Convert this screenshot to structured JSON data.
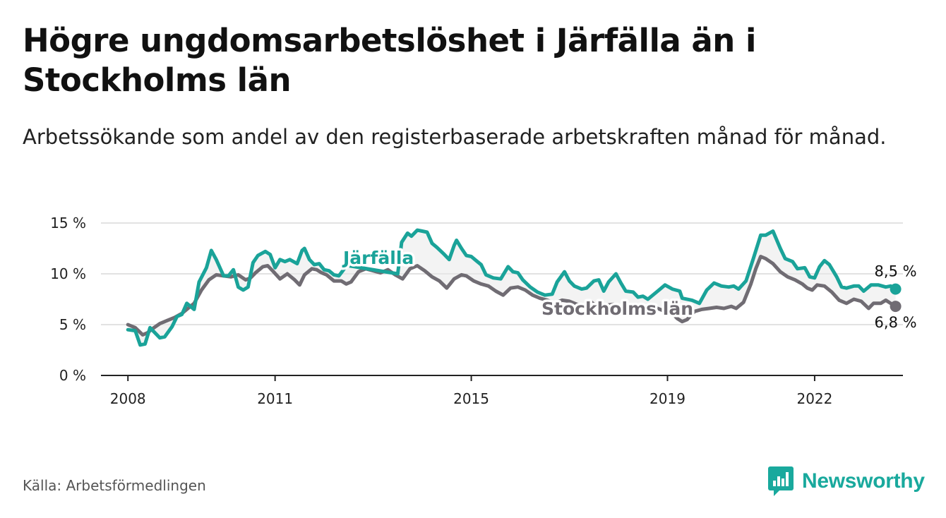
{
  "header": {
    "title": "Högre ungdomsarbetslöshet i Järfälla än i Stockholms län",
    "subtitle": "Arbetssökande som andel av den registerbaserade arbetskraften månad för månad."
  },
  "footer": {
    "source": "Källa: Arbetsförmedlingen",
    "brand": "Newsworthy"
  },
  "colors": {
    "jarfalla": "#1aa399",
    "stockholm": "#706c73",
    "grid": "#d9d9d9",
    "axis": "#222222",
    "brand": "#19a99d"
  },
  "chart_data": {
    "type": "line",
    "title": "Högre ungdomsarbetslöshet i Järfälla än i Stockholms län",
    "xlabel": "",
    "ylabel": "",
    "x_range": [
      2007.45,
      2023.8
    ],
    "ylim": [
      0,
      15
    ],
    "y_ticks": [
      0,
      5,
      10,
      15
    ],
    "y_tick_labels": [
      "0 %",
      "5 %",
      "10 %",
      "15 %"
    ],
    "x_ticks": [
      2008,
      2011,
      2015,
      2019,
      2022
    ],
    "x_tick_labels": [
      "2008",
      "2011",
      "2015",
      "2019",
      "2022"
    ],
    "grid": true,
    "series": [
      {
        "name": "Järfälla",
        "end_label": "8,5 %",
        "points": [
          [
            2008.0,
            4.5
          ],
          [
            2008.15,
            4.4
          ],
          [
            2008.25,
            3.0
          ],
          [
            2008.35,
            3.1
          ],
          [
            2008.45,
            4.7
          ],
          [
            2008.55,
            4.2
          ],
          [
            2008.65,
            3.7
          ],
          [
            2008.75,
            3.8
          ],
          [
            2008.9,
            4.8
          ],
          [
            2009.0,
            5.8
          ],
          [
            2009.1,
            6.0
          ],
          [
            2009.2,
            7.1
          ],
          [
            2009.35,
            6.5
          ],
          [
            2009.45,
            9.2
          ],
          [
            2009.6,
            10.6
          ],
          [
            2009.7,
            12.3
          ],
          [
            2009.8,
            11.4
          ],
          [
            2009.95,
            9.8
          ],
          [
            2010.05,
            9.8
          ],
          [
            2010.15,
            10.4
          ],
          [
            2010.25,
            8.7
          ],
          [
            2010.35,
            8.4
          ],
          [
            2010.45,
            8.7
          ],
          [
            2010.55,
            11.1
          ],
          [
            2010.65,
            11.8
          ],
          [
            2010.8,
            12.2
          ],
          [
            2010.9,
            11.9
          ],
          [
            2011.0,
            10.6
          ],
          [
            2011.1,
            11.4
          ],
          [
            2011.2,
            11.2
          ],
          [
            2011.3,
            11.4
          ],
          [
            2011.45,
            11.0
          ],
          [
            2011.55,
            12.3
          ],
          [
            2011.6,
            12.5
          ],
          [
            2011.7,
            11.4
          ],
          [
            2011.8,
            10.9
          ],
          [
            2011.9,
            11.0
          ],
          [
            2012.0,
            10.4
          ],
          [
            2012.1,
            10.3
          ],
          [
            2012.2,
            9.9
          ],
          [
            2012.3,
            9.8
          ],
          [
            2012.38,
            10.3
          ],
          [
            2012.45,
            10.8
          ],
          [
            2012.5,
            10.8
          ],
          [
            2013.5,
            10.0
          ],
          [
            2013.58,
            13.1
          ],
          [
            2013.7,
            14.0
          ],
          [
            2013.78,
            13.7
          ],
          [
            2013.9,
            14.3
          ],
          [
            2014.0,
            14.2
          ],
          [
            2014.1,
            14.1
          ],
          [
            2014.2,
            13.0
          ],
          [
            2014.3,
            12.6
          ],
          [
            2014.45,
            11.9
          ],
          [
            2014.55,
            11.4
          ],
          [
            2014.65,
            12.8
          ],
          [
            2014.7,
            13.3
          ],
          [
            2014.8,
            12.5
          ],
          [
            2014.9,
            11.8
          ],
          [
            2015.0,
            11.7
          ],
          [
            2015.1,
            11.3
          ],
          [
            2015.2,
            10.9
          ],
          [
            2015.3,
            9.9
          ],
          [
            2015.45,
            9.6
          ],
          [
            2015.6,
            9.5
          ],
          [
            2015.75,
            10.7
          ],
          [
            2015.85,
            10.2
          ],
          [
            2015.95,
            10.1
          ],
          [
            2016.05,
            9.4
          ],
          [
            2016.2,
            8.7
          ],
          [
            2016.35,
            8.2
          ],
          [
            2016.5,
            7.9
          ],
          [
            2016.65,
            8.0
          ],
          [
            2016.75,
            9.2
          ],
          [
            2016.9,
            10.2
          ],
          [
            2017.0,
            9.3
          ],
          [
            2017.1,
            8.8
          ],
          [
            2017.25,
            8.5
          ],
          [
            2017.35,
            8.6
          ],
          [
            2017.5,
            9.3
          ],
          [
            2017.6,
            9.4
          ],
          [
            2017.7,
            8.3
          ],
          [
            2017.8,
            9.2
          ],
          [
            2017.95,
            10.0
          ],
          [
            2018.05,
            9.1
          ],
          [
            2018.15,
            8.3
          ],
          [
            2018.3,
            8.2
          ],
          [
            2018.4,
            7.7
          ],
          [
            2018.5,
            7.8
          ],
          [
            2018.6,
            7.5
          ],
          [
            2018.8,
            8.3
          ],
          [
            2018.95,
            8.9
          ],
          [
            2019.1,
            8.5
          ],
          [
            2019.25,
            8.3
          ],
          [
            2019.3,
            7.6
          ],
          [
            2019.5,
            7.4
          ],
          [
            2019.65,
            7.1
          ],
          [
            2019.8,
            8.4
          ],
          [
            2019.95,
            9.1
          ],
          [
            2020.1,
            8.8
          ],
          [
            2020.25,
            8.7
          ],
          [
            2020.35,
            8.8
          ],
          [
            2020.45,
            8.5
          ],
          [
            2020.6,
            9.3
          ],
          [
            2020.75,
            11.5
          ],
          [
            2020.9,
            13.8
          ],
          [
            2021.0,
            13.8
          ],
          [
            2021.15,
            14.2
          ],
          [
            2021.3,
            12.5
          ],
          [
            2021.4,
            11.5
          ],
          [
            2021.55,
            11.2
          ],
          [
            2021.65,
            10.5
          ],
          [
            2021.8,
            10.6
          ],
          [
            2021.9,
            9.7
          ],
          [
            2022.0,
            9.6
          ],
          [
            2022.1,
            10.7
          ],
          [
            2022.2,
            11.3
          ],
          [
            2022.3,
            10.9
          ],
          [
            2022.45,
            9.7
          ],
          [
            2022.55,
            8.7
          ],
          [
            2022.65,
            8.6
          ],
          [
            2022.8,
            8.8
          ],
          [
            2022.9,
            8.8
          ],
          [
            2023.0,
            8.3
          ],
          [
            2023.15,
            8.9
          ],
          [
            2023.3,
            8.9
          ],
          [
            2023.45,
            8.7
          ],
          [
            2023.55,
            8.8
          ],
          [
            2023.65,
            8.5
          ]
        ]
      },
      {
        "name": "Stockholms län",
        "end_label": "6,8 %",
        "points": [
          [
            2008.0,
            5.0
          ],
          [
            2008.15,
            4.7
          ],
          [
            2008.3,
            4.0
          ],
          [
            2008.4,
            4.2
          ],
          [
            2008.5,
            4.6
          ],
          [
            2008.65,
            5.1
          ],
          [
            2008.8,
            5.4
          ],
          [
            2008.95,
            5.7
          ],
          [
            2009.1,
            6.1
          ],
          [
            2009.25,
            6.7
          ],
          [
            2009.35,
            7.1
          ],
          [
            2009.5,
            8.4
          ],
          [
            2009.65,
            9.4
          ],
          [
            2009.8,
            9.9
          ],
          [
            2009.95,
            9.8
          ],
          [
            2010.1,
            9.7
          ],
          [
            2010.25,
            9.9
          ],
          [
            2010.4,
            9.4
          ],
          [
            2010.5,
            9.6
          ],
          [
            2010.6,
            10.1
          ],
          [
            2010.75,
            10.7
          ],
          [
            2010.85,
            10.8
          ],
          [
            2010.95,
            10.3
          ],
          [
            2011.1,
            9.5
          ],
          [
            2011.25,
            10.0
          ],
          [
            2011.4,
            9.4
          ],
          [
            2011.5,
            8.9
          ],
          [
            2011.6,
            9.9
          ],
          [
            2011.75,
            10.5
          ],
          [
            2011.85,
            10.4
          ],
          [
            2011.95,
            10.1
          ],
          [
            2012.05,
            9.9
          ],
          [
            2012.2,
            9.3
          ],
          [
            2012.35,
            9.3
          ],
          [
            2012.45,
            9.0
          ],
          [
            2012.55,
            9.2
          ],
          [
            2012.7,
            10.2
          ],
          [
            2012.85,
            10.5
          ],
          [
            2013.0,
            10.3
          ],
          [
            2013.15,
            10.1
          ],
          [
            2013.3,
            10.4
          ],
          [
            2013.45,
            9.9
          ],
          [
            2013.6,
            9.5
          ],
          [
            2013.75,
            10.5
          ],
          [
            2013.9,
            10.8
          ],
          [
            2014.05,
            10.3
          ],
          [
            2014.2,
            9.7
          ],
          [
            2014.35,
            9.3
          ],
          [
            2014.5,
            8.6
          ],
          [
            2014.65,
            9.5
          ],
          [
            2014.8,
            9.9
          ],
          [
            2014.9,
            9.8
          ],
          [
            2015.05,
            9.3
          ],
          [
            2015.2,
            9.0
          ],
          [
            2015.35,
            8.8
          ],
          [
            2015.5,
            8.3
          ],
          [
            2015.65,
            7.9
          ],
          [
            2015.8,
            8.6
          ],
          [
            2015.95,
            8.7
          ],
          [
            2016.1,
            8.4
          ],
          [
            2016.25,
            7.9
          ],
          [
            2016.4,
            7.6
          ],
          [
            2016.55,
            7.4
          ],
          [
            2016.7,
            7.1
          ],
          [
            2016.85,
            7.4
          ],
          [
            2017.0,
            7.3
          ],
          [
            2017.15,
            7.0
          ],
          [
            2017.3,
            6.9
          ],
          [
            2017.45,
            7.2
          ],
          [
            2017.6,
            6.6
          ],
          [
            2017.75,
            6.9
          ],
          [
            2017.9,
            7.0
          ],
          [
            2018.05,
            6.6
          ],
          [
            2018.2,
            6.2
          ],
          [
            2018.35,
            6.5
          ],
          [
            2018.5,
            6.3
          ],
          [
            2018.65,
            6.4
          ],
          [
            2018.8,
            6.6
          ],
          [
            2018.95,
            6.3
          ],
          [
            2019.1,
            6.1
          ],
          [
            2019.2,
            5.6
          ],
          [
            2019.3,
            5.3
          ],
          [
            2019.4,
            5.5
          ],
          [
            2019.55,
            6.3
          ],
          [
            2019.7,
            6.5
          ],
          [
            2019.85,
            6.6
          ],
          [
            2020.0,
            6.7
          ],
          [
            2020.15,
            6.6
          ],
          [
            2020.3,
            6.8
          ],
          [
            2020.4,
            6.6
          ],
          [
            2020.55,
            7.2
          ],
          [
            2020.7,
            9.0
          ],
          [
            2020.8,
            10.5
          ],
          [
            2020.9,
            11.7
          ],
          [
            2021.0,
            11.5
          ],
          [
            2021.15,
            11.0
          ],
          [
            2021.3,
            10.2
          ],
          [
            2021.45,
            9.7
          ],
          [
            2021.6,
            9.4
          ],
          [
            2021.75,
            9.0
          ],
          [
            2021.85,
            8.6
          ],
          [
            2021.95,
            8.4
          ],
          [
            2022.05,
            8.9
          ],
          [
            2022.2,
            8.8
          ],
          [
            2022.35,
            8.2
          ],
          [
            2022.5,
            7.4
          ],
          [
            2022.65,
            7.1
          ],
          [
            2022.8,
            7.5
          ],
          [
            2022.95,
            7.3
          ],
          [
            2023.1,
            6.6
          ],
          [
            2023.2,
            7.1
          ],
          [
            2023.35,
            7.1
          ],
          [
            2023.45,
            7.4
          ],
          [
            2023.55,
            7.1
          ],
          [
            2023.65,
            6.8
          ]
        ]
      }
    ],
    "annotations": [
      {
        "series": "Järfälla",
        "text": "Järfälla"
      },
      {
        "series": "Stockholms län",
        "text": "Stockholms län"
      }
    ]
  }
}
